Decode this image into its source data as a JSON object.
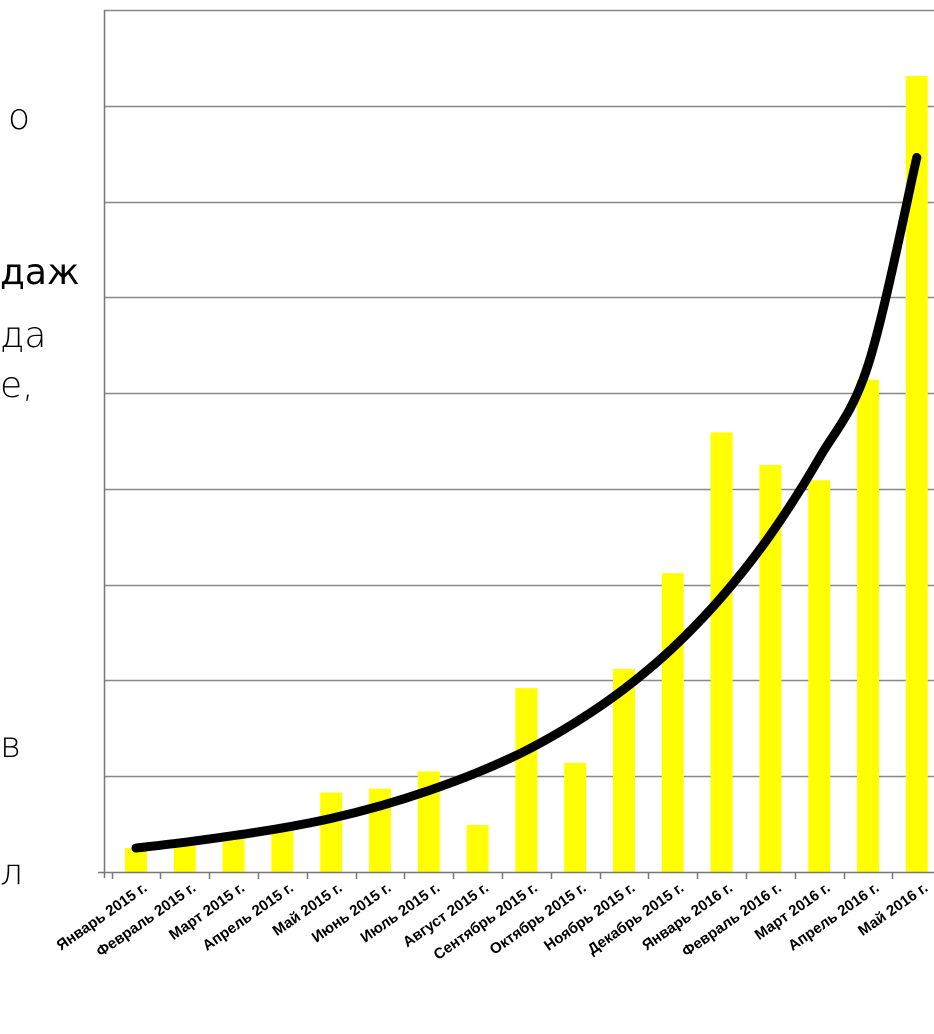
{
  "side_fragments": [
    "о",
    "даж",
    "да",
    "е,",
    "в",
    "л"
  ],
  "chart_data": {
    "type": "bar",
    "title": "",
    "xlabel": "",
    "ylabel": "",
    "categories": [
      "Январь 2015 г.",
      "Февраль 2015 г.",
      "Март 2015 г.",
      "Апрель 2015 г.",
      "Май 2015 г.",
      "Июнь 2015 г.",
      "Июль 2015 г.",
      "Август 2015 г.",
      "Сентябрь 2015 г.",
      "Октябрь 2015 г.",
      "Ноябрь 2015 г.",
      "Декабрь 2015 г.",
      "Январь 2016 г.",
      "Февраль 2016 г.",
      "Март 2016 г.",
      "Апрель 2016 г.",
      "Май 2016 г."
    ],
    "values": [
      0.25,
      0.27,
      0.36,
      0.45,
      0.83,
      0.87,
      1.05,
      0.49,
      1.92,
      1.14,
      2.12,
      3.12,
      4.59,
      4.25,
      4.09,
      5.14,
      8.31
    ],
    "trend": [
      0.25,
      0.31,
      0.38,
      0.46,
      0.56,
      0.69,
      0.85,
      1.04,
      1.27,
      1.56,
      1.91,
      2.34,
      2.87,
      3.52,
      4.32,
      5.29,
      7.46
    ],
    "ylim": [
      0,
      9
    ],
    "ytick_step": 1,
    "grid": true,
    "legend": "none",
    "colors": {
      "bar": "#ffff00",
      "trend": "#000000",
      "grid": "#888888"
    }
  }
}
